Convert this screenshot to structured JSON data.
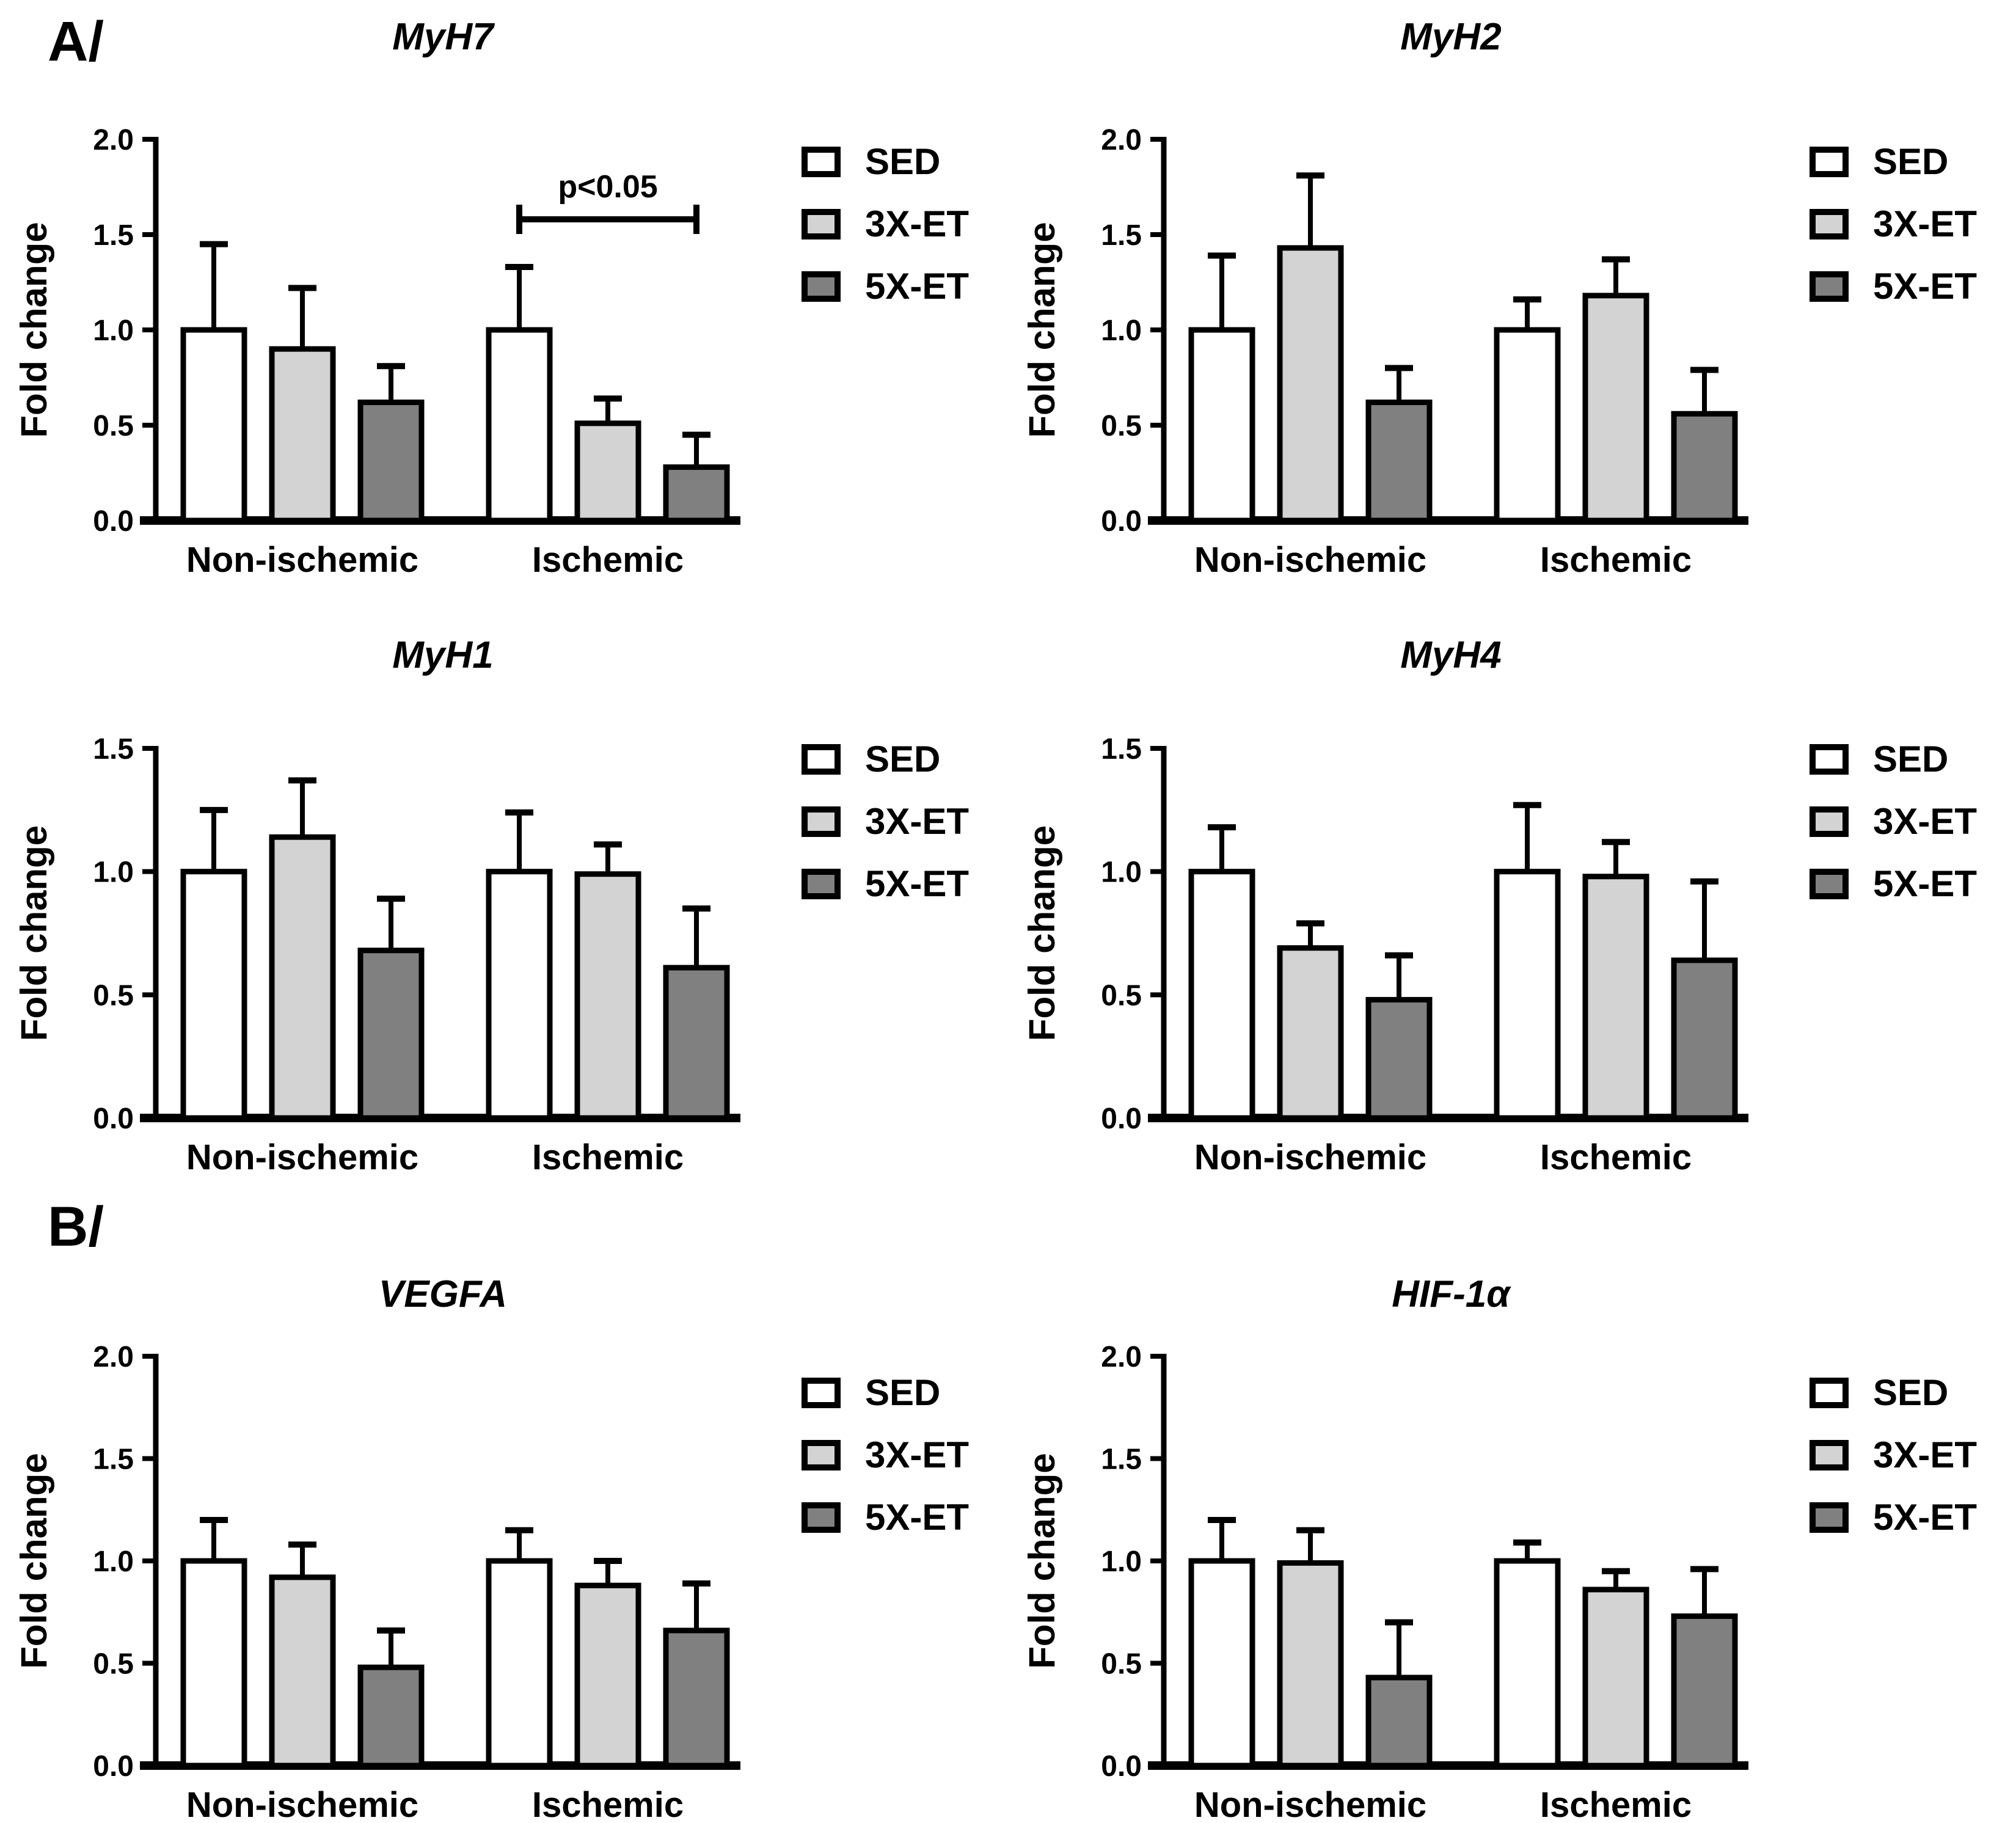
{
  "panels": [
    {
      "id": "A",
      "label": "A/"
    },
    {
      "id": "B",
      "label": "B/"
    }
  ],
  "legend": {
    "items": [
      {
        "label": "SED",
        "color": "#ffffff"
      },
      {
        "label": "3X-ET",
        "color": "#d3d3d3"
      },
      {
        "label": "5X-ET",
        "color": "#808080"
      }
    ]
  },
  "colors": {
    "axis": "#000000",
    "sed": "#ffffff",
    "et3x": "#d3d3d3",
    "et5x": "#808080"
  },
  "chart_data": [
    {
      "id": "myh7",
      "type": "bar",
      "panel": "A",
      "title": "MyH7",
      "ylabel": "Fold change",
      "ylim": [
        0,
        2.0
      ],
      "yticks": [
        0.0,
        0.5,
        1.0,
        1.5,
        2.0
      ],
      "grid": false,
      "legend_position": "right",
      "categories": [
        "Non-ischemic",
        "Ischemic"
      ],
      "series": [
        {
          "name": "SED",
          "color": "#ffffff",
          "values": [
            1.0,
            1.0
          ],
          "errors": [
            0.45,
            0.33
          ]
        },
        {
          "name": "3X-ET",
          "color": "#d3d3d3",
          "values": [
            0.9,
            0.51
          ],
          "errors": [
            0.32,
            0.13
          ]
        },
        {
          "name": "5X-ET",
          "color": "#808080",
          "values": [
            0.62,
            0.28
          ],
          "errors": [
            0.19,
            0.17
          ]
        }
      ],
      "significance": {
        "label": "p<0.05",
        "category": "Ischemic",
        "from": "SED",
        "to": "5X-ET",
        "y": 1.58
      }
    },
    {
      "id": "myh2",
      "type": "bar",
      "panel": "A",
      "title": "MyH2",
      "ylabel": "Fold change",
      "ylim": [
        0,
        2.0
      ],
      "yticks": [
        0.0,
        0.5,
        1.0,
        1.5,
        2.0
      ],
      "grid": false,
      "legend_position": "right",
      "categories": [
        "Non-ischemic",
        "Ischemic"
      ],
      "series": [
        {
          "name": "SED",
          "color": "#ffffff",
          "values": [
            1.0,
            1.0
          ],
          "errors": [
            0.39,
            0.16
          ]
        },
        {
          "name": "3X-ET",
          "color": "#d3d3d3",
          "values": [
            1.43,
            1.18
          ],
          "errors": [
            0.38,
            0.19
          ]
        },
        {
          "name": "5X-ET",
          "color": "#808080",
          "values": [
            0.62,
            0.56
          ],
          "errors": [
            0.18,
            0.23
          ]
        }
      ],
      "significance": null
    },
    {
      "id": "myh1",
      "type": "bar",
      "panel": "A",
      "title": "MyH1",
      "ylabel": "Fold change",
      "ylim": [
        0,
        1.5
      ],
      "yticks": [
        0.0,
        0.5,
        1.0,
        1.5
      ],
      "grid": false,
      "legend_position": "right",
      "categories": [
        "Non-ischemic",
        "Ischemic"
      ],
      "series": [
        {
          "name": "SED",
          "color": "#ffffff",
          "values": [
            1.0,
            1.0
          ],
          "errors": [
            0.25,
            0.24
          ]
        },
        {
          "name": "3X-ET",
          "color": "#d3d3d3",
          "values": [
            1.14,
            0.99
          ],
          "errors": [
            0.23,
            0.12
          ]
        },
        {
          "name": "5X-ET",
          "color": "#808080",
          "values": [
            0.68,
            0.61
          ],
          "errors": [
            0.21,
            0.24
          ]
        }
      ],
      "significance": null
    },
    {
      "id": "myh4",
      "type": "bar",
      "panel": "A",
      "title": "MyH4",
      "ylabel": "Fold change",
      "ylim": [
        0,
        1.5
      ],
      "yticks": [
        0.0,
        0.5,
        1.0,
        1.5
      ],
      "grid": false,
      "legend_position": "right",
      "categories": [
        "Non-ischemic",
        "Ischemic"
      ],
      "series": [
        {
          "name": "SED",
          "color": "#ffffff",
          "values": [
            1.0,
            1.0
          ],
          "errors": [
            0.18,
            0.27
          ]
        },
        {
          "name": "3X-ET",
          "color": "#d3d3d3",
          "values": [
            0.69,
            0.98
          ],
          "errors": [
            0.1,
            0.14
          ]
        },
        {
          "name": "5X-ET",
          "color": "#808080",
          "values": [
            0.48,
            0.64
          ],
          "errors": [
            0.18,
            0.32
          ]
        }
      ],
      "significance": null
    },
    {
      "id": "vegfa",
      "type": "bar",
      "panel": "B",
      "title": "VEGFA",
      "ylabel": "Fold change",
      "ylim": [
        0,
        2.0
      ],
      "yticks": [
        0.0,
        0.5,
        1.0,
        1.5,
        2.0
      ],
      "grid": false,
      "legend_position": "right",
      "categories": [
        "Non-ischemic",
        "Ischemic"
      ],
      "series": [
        {
          "name": "SED",
          "color": "#ffffff",
          "values": [
            1.0,
            1.0
          ],
          "errors": [
            0.2,
            0.15
          ]
        },
        {
          "name": "3X-ET",
          "color": "#d3d3d3",
          "values": [
            0.92,
            0.88
          ],
          "errors": [
            0.16,
            0.12
          ]
        },
        {
          "name": "5X-ET",
          "color": "#808080",
          "values": [
            0.48,
            0.66
          ],
          "errors": [
            0.18,
            0.23
          ]
        }
      ],
      "significance": null
    },
    {
      "id": "hif1a",
      "type": "bar",
      "panel": "B",
      "title": "HIF-1α",
      "ylabel": "Fold change",
      "ylim": [
        0,
        2.0
      ],
      "yticks": [
        0.0,
        0.5,
        1.0,
        1.5,
        2.0
      ],
      "grid": false,
      "legend_position": "right",
      "categories": [
        "Non-ischemic",
        "Ischemic"
      ],
      "series": [
        {
          "name": "SED",
          "color": "#ffffff",
          "values": [
            1.0,
            1.0
          ],
          "errors": [
            0.2,
            0.09
          ]
        },
        {
          "name": "3X-ET",
          "color": "#d3d3d3",
          "values": [
            0.99,
            0.86
          ],
          "errors": [
            0.16,
            0.09
          ]
        },
        {
          "name": "5X-ET",
          "color": "#808080",
          "values": [
            0.43,
            0.73
          ],
          "errors": [
            0.27,
            0.23
          ]
        }
      ],
      "significance": null
    }
  ]
}
